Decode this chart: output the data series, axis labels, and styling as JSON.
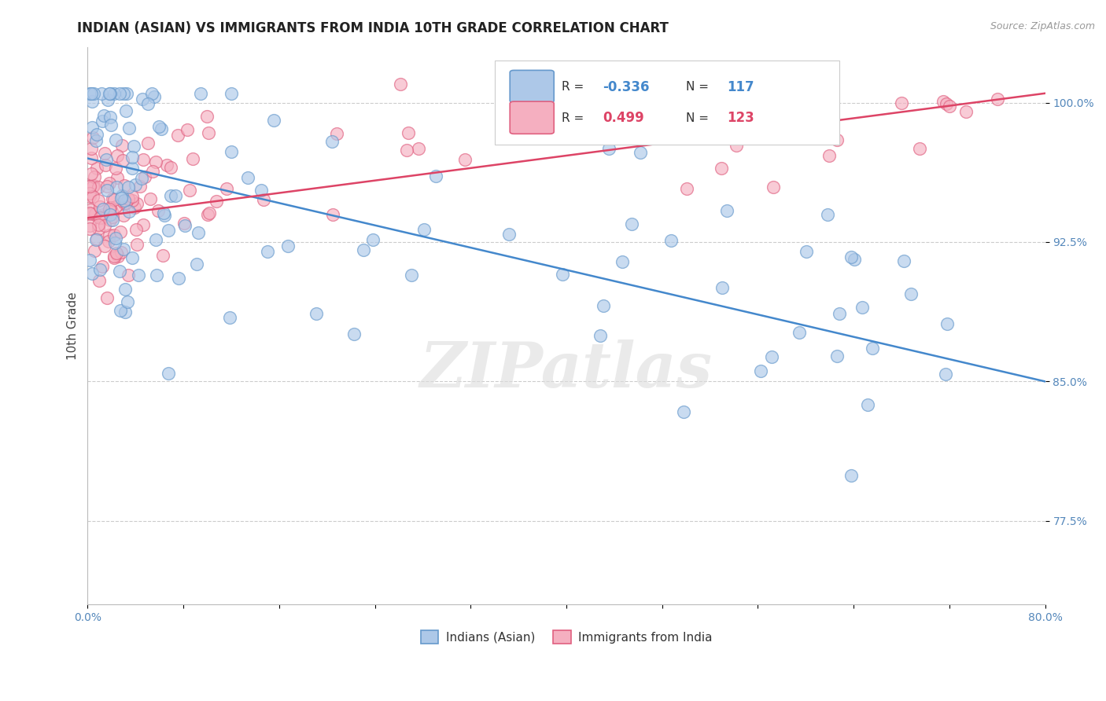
{
  "title": "INDIAN (ASIAN) VS IMMIGRANTS FROM INDIA 10TH GRADE CORRELATION CHART",
  "source_text": "Source: ZipAtlas.com",
  "ylabel": "10th Grade",
  "legend_blue_label": "Indians (Asian)",
  "legend_pink_label": "Immigrants from India",
  "legend_blue_R": "-0.336",
  "legend_blue_N": "117",
  "legend_pink_R": "0.499",
  "legend_pink_N": "123",
  "blue_fill": "#adc8e8",
  "pink_fill": "#f5afc0",
  "blue_edge": "#6699cc",
  "pink_edge": "#e06080",
  "blue_line_color": "#4488cc",
  "pink_line_color": "#dd4466",
  "watermark": "ZIPatlas",
  "xmin": 0.0,
  "xmax": 80.0,
  "ymin": 73.0,
  "ymax": 103.0,
  "yticks": [
    77.5,
    85.0,
    92.5,
    100.0
  ],
  "blue_line_x0": 0.0,
  "blue_line_y0": 97.0,
  "blue_line_x1": 80.0,
  "blue_line_y1": 85.0,
  "pink_line_x0": 0.0,
  "pink_line_y0": 93.8,
  "pink_line_x1": 80.0,
  "pink_line_y1": 100.5
}
